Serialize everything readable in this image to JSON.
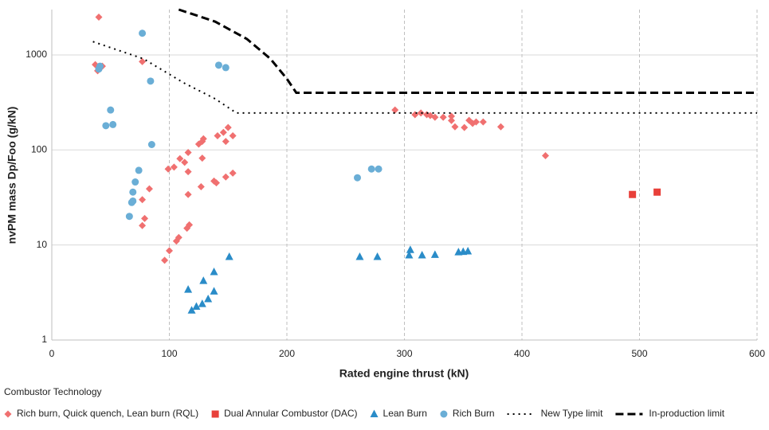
{
  "chart_data": {
    "type": "scatter",
    "x_label": "Rated engine thrust (kN)",
    "y_label": "nvPM mass Dp/Foo (g/kN)",
    "legend_title": "Combustor Technology",
    "xlim": [
      0,
      600
    ],
    "xticks": [
      0,
      100,
      200,
      300,
      400,
      500,
      600
    ],
    "ylim": [
      1,
      3000
    ],
    "yticks": [
      1,
      10,
      100,
      1000
    ],
    "y_scale": "log",
    "grid": true,
    "legend": "bottom",
    "series": [
      {
        "name": "Rich burn, Quick quench, Lean burn (RQL)",
        "color": "#f07070",
        "marker": "diamond",
        "x": [
          40,
          37,
          39,
          43,
          77,
          99,
          104,
          109,
          113,
          116,
          116,
          116,
          125,
          128,
          129,
          128,
          127,
          138,
          140,
          141,
          146,
          150,
          148,
          154,
          148,
          154,
          77,
          83,
          79,
          77,
          100,
          96,
          106,
          108,
          115,
          117,
          292,
          309,
          314,
          319,
          322,
          326,
          333,
          340,
          340,
          343,
          351,
          355,
          358,
          361,
          367,
          382,
          420
        ],
        "values": [
          2500,
          790,
          680,
          760,
          850,
          63,
          66,
          81,
          74,
          94,
          59,
          34,
          115,
          123,
          131,
          82,
          41,
          47,
          45,
          141,
          153,
          172,
          123,
          141,
          52,
          57,
          30,
          39,
          19,
          16,
          8.7,
          6.9,
          11,
          12,
          15,
          16.3,
          263,
          235,
          245,
          235,
          230,
          221,
          221,
          226,
          204,
          175,
          172,
          205,
          190,
          197,
          197,
          175,
          87
        ]
      },
      {
        "name": "Dual Annular Combustor (DAC)",
        "color": "#e8403a",
        "marker": "square",
        "x": [
          494,
          515
        ],
        "values": [
          34,
          36
        ]
      },
      {
        "name": "Lean Burn",
        "color": "#2a8cc8",
        "marker": "triangle",
        "x": [
          116,
          119,
          123,
          128,
          129,
          133,
          138,
          138,
          151,
          262,
          277,
          304,
          305,
          315,
          326,
          346,
          350,
          354
        ],
        "values": [
          3.4,
          2.05,
          2.25,
          2.4,
          4.2,
          2.7,
          3.25,
          5.2,
          7.5,
          7.5,
          7.5,
          7.8,
          8.9,
          7.8,
          7.9,
          8.4,
          8.5,
          8.6
        ]
      },
      {
        "name": "Rich Burn",
        "color": "#6aaed6",
        "marker": "circle",
        "x": [
          40,
          41,
          77,
          84,
          50,
          52,
          46,
          85,
          74,
          71,
          69,
          69,
          68,
          66,
          142,
          148,
          260,
          272,
          278
        ],
        "values": [
          710,
          760,
          1690,
          530,
          263,
          185,
          180,
          114,
          61,
          46,
          36,
          29,
          28,
          20,
          780,
          735,
          51,
          63,
          63
        ]
      },
      {
        "name": "New Type limit",
        "color": "#000000",
        "marker": "dotted",
        "x": [
          35,
          78,
          112,
          139,
          157,
          600
        ],
        "values": [
          1380,
          910,
          510,
          345,
          245,
          245
        ]
      },
      {
        "name": "In-production limit",
        "color": "#000000",
        "marker": "dashed",
        "x": [
          108,
          139,
          166,
          186,
          200,
          208,
          600
        ],
        "values": [
          3000,
          2240,
          1470,
          910,
          560,
          400,
          400
        ]
      }
    ]
  }
}
